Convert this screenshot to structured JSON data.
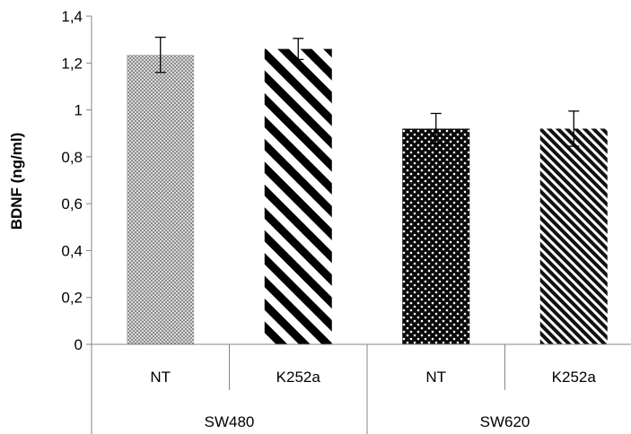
{
  "chart_data": {
    "type": "bar",
    "title": "",
    "ylabel": "BDNF (ng/ml)",
    "xlabel": "",
    "ylim": [
      0,
      1.4
    ],
    "y_ticks": [
      0,
      0.2,
      0.4,
      0.6,
      0.8,
      1,
      1.2,
      1.4
    ],
    "y_tick_labels": [
      "0",
      "0,2",
      "0,4",
      "0,6",
      "0,8",
      "1",
      "1,2",
      "1,4"
    ],
    "grid": false,
    "legend": "none",
    "groups": [
      "SW480",
      "SW620"
    ],
    "categories": [
      "NT",
      "K252a",
      "NT",
      "K252a"
    ],
    "values": [
      1.235,
      1.26,
      0.92,
      0.92
    ],
    "errors": [
      0.075,
      0.045,
      0.065,
      0.075
    ],
    "bar_patterns": [
      "fine-dots",
      "wide-diagonal-stripes",
      "dark-dots",
      "fine-diagonal-stripes"
    ]
  }
}
